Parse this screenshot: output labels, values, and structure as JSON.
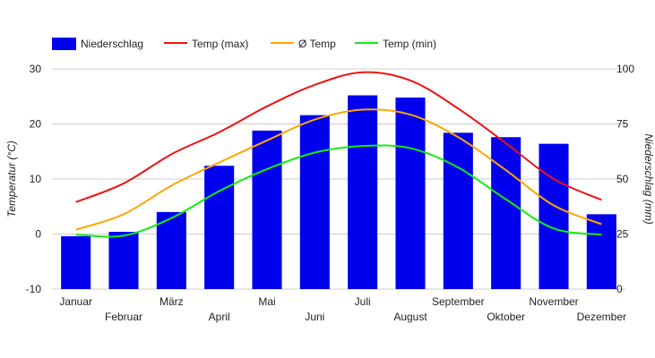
{
  "chart_data": {
    "type": "bar",
    "categories": [
      "Januar",
      "Februar",
      "März",
      "April",
      "Mai",
      "Juni",
      "Juli",
      "August",
      "September",
      "Oktober",
      "November",
      "Dezember"
    ],
    "bar_series": {
      "name": "Niederschlag",
      "color": "#0000ee",
      "axis": "right",
      "values": [
        24,
        26,
        35,
        56,
        72,
        79,
        88,
        87,
        71,
        69,
        66,
        34
      ]
    },
    "line_series": [
      {
        "name": "Temp (max)",
        "color": "#ee1111",
        "values": [
          5.8,
          9.2,
          14.5,
          18.5,
          23.2,
          27.1,
          29.4,
          27.9,
          22.8,
          16.5,
          10.0,
          6.2
        ]
      },
      {
        "name": "Ø Temp",
        "color": "#ffa500",
        "values": [
          0.8,
          3.6,
          8.8,
          13.0,
          17.0,
          20.8,
          22.6,
          21.7,
          17.6,
          11.6,
          5.2,
          1.8
        ]
      },
      {
        "name": "Temp (min)",
        "color": "#11ee11",
        "values": [
          -0.1,
          -0.3,
          2.9,
          7.8,
          11.8,
          14.8,
          16.0,
          15.6,
          12.1,
          6.3,
          1.0,
          -0.1
        ]
      }
    ],
    "ylabel_left": "Temperatur (°C)",
    "ylabel_right": "Niederschlag (mm)",
    "ylim_left": [
      -10,
      30
    ],
    "ylim_right": [
      0,
      100
    ],
    "yticks_left": [
      "-10",
      "0",
      "10",
      "20",
      "30"
    ],
    "yticks_right": [
      "0",
      "25",
      "50",
      "75",
      "100"
    ],
    "grid": true,
    "legend_position": "top-left"
  }
}
